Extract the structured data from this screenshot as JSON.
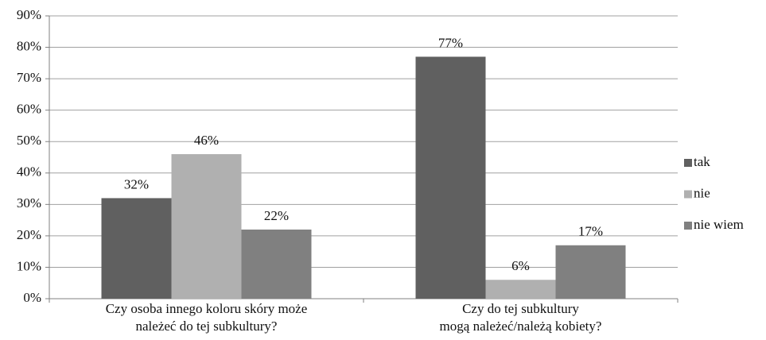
{
  "chart_data": {
    "type": "bar",
    "categories": [
      [
        "Czy osoba innego koloru skóry może",
        "należeć do tej subkultury?"
      ],
      [
        "Czy do tej subkultury",
        "mogą należeć/należą kobiety?"
      ]
    ],
    "series": [
      {
        "name": "tak",
        "color": "#606060",
        "values": [
          32,
          77
        ],
        "value_labels": [
          "32%",
          "77%"
        ]
      },
      {
        "name": "nie",
        "color": "#b0b0b0",
        "values": [
          46,
          6
        ],
        "value_labels": [
          "46%",
          "6%"
        ]
      },
      {
        "name": "nie wiem",
        "color": "#808080",
        "values": [
          22,
          17
        ],
        "value_labels": [
          "22%",
          "17%"
        ]
      }
    ],
    "ylim": [
      0,
      90
    ],
    "yticks": [
      {
        "value": 0,
        "label": "0%"
      },
      {
        "value": 10,
        "label": "10%"
      },
      {
        "value": 20,
        "label": "20%"
      },
      {
        "value": 30,
        "label": "30%"
      },
      {
        "value": 40,
        "label": "40%"
      },
      {
        "value": 50,
        "label": "50%"
      },
      {
        "value": 60,
        "label": "60%"
      },
      {
        "value": 70,
        "label": "70%"
      },
      {
        "value": 80,
        "label": "80%"
      },
      {
        "value": 90,
        "label": "90%"
      }
    ],
    "grid": true,
    "legend": "right"
  }
}
